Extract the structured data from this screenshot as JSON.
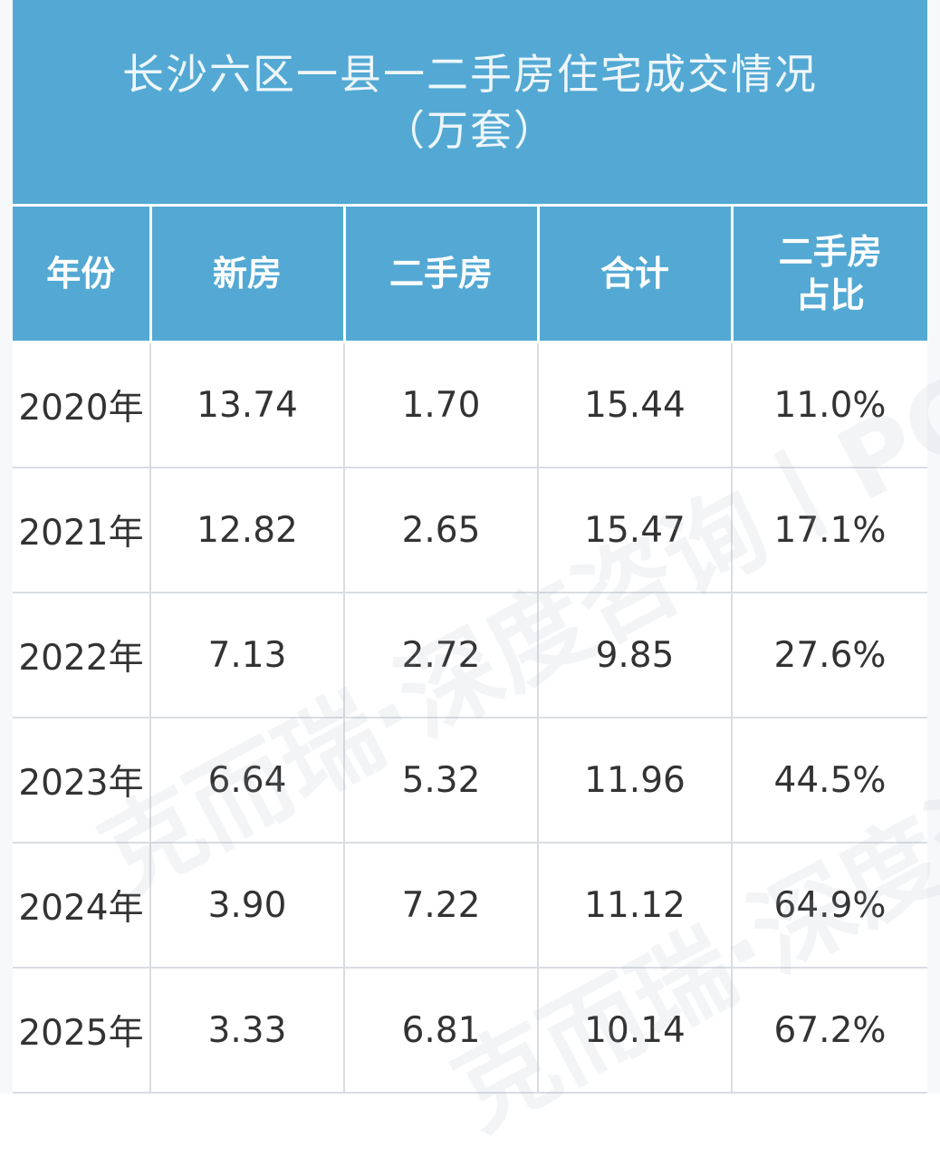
{
  "chart_data": {
    "type": "table",
    "title": "长沙六区一县一二手房住宅成交情况",
    "subtitle": "（万套）",
    "columns": [
      "年份",
      "新房",
      "二手房",
      "合计",
      "二手房占比"
    ],
    "header_lines": [
      [
        "年份"
      ],
      [
        "新房"
      ],
      [
        "二手房"
      ],
      [
        "合计"
      ],
      [
        "二手房",
        "占比"
      ]
    ],
    "rows": [
      [
        "2020年",
        "13.74",
        "1.70",
        "15.44",
        "11.0%"
      ],
      [
        "2021年",
        "12.82",
        "2.65",
        "15.47",
        "17.1%"
      ],
      [
        "2022年",
        "7.13",
        "2.72",
        "9.85",
        "27.6%"
      ],
      [
        "2023年",
        "6.64",
        "5.32",
        "11.96",
        "44.5%"
      ],
      [
        "2024年",
        "3.90",
        "7.22",
        "11.12",
        "64.9%"
      ],
      [
        "2025年",
        "3.33",
        "6.81",
        "10.14",
        "67.2%"
      ]
    ]
  },
  "watermark": "克而瑞·深度咨询丨PC普查",
  "colors": {
    "header_bg": "#53a9d3",
    "header_text": "#ffffff",
    "cell_text": "#333333",
    "grid": "#d9dde2"
  }
}
